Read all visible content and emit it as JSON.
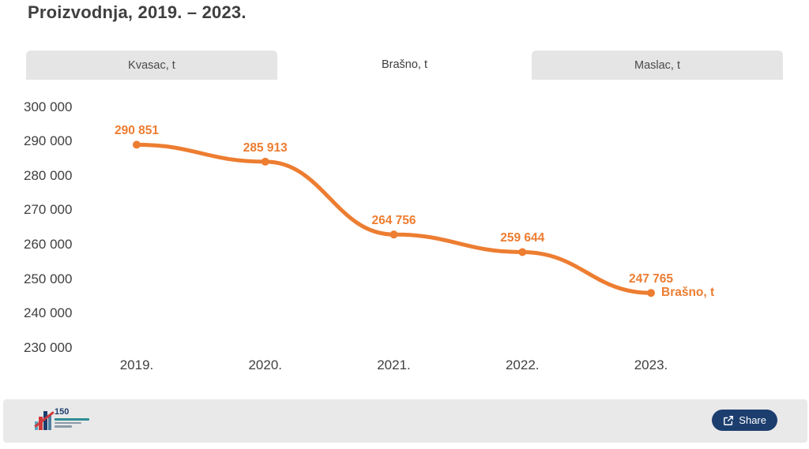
{
  "page": {
    "title": "Proizvodnja, 2019. – 2023."
  },
  "tabs": [
    {
      "label": "Kvasac, t",
      "active": false
    },
    {
      "label": "Brašno, t",
      "active": true
    },
    {
      "label": "Maslac, t",
      "active": false
    }
  ],
  "chart_data": {
    "type": "line",
    "title": "Proizvodnja, 2019. – 2023.",
    "categories": [
      "2019.",
      "2020.",
      "2021.",
      "2022.",
      "2023."
    ],
    "series": [
      {
        "name": "Brašno, t",
        "values": [
          290851,
          285913,
          264756,
          259644,
          247765
        ]
      }
    ],
    "data_labels": [
      "290 851",
      "285 913",
      "264 756",
      "259 644",
      "247 765"
    ],
    "series_end_label": "Brašno, t",
    "y_ticks": [
      300000,
      290000,
      280000,
      270000,
      260000,
      250000,
      240000,
      230000
    ],
    "y_tick_labels": [
      "300 000",
      "290 000",
      "280 000",
      "270 000",
      "260 000",
      "250 000",
      "240 000",
      "230 000"
    ],
    "ylim": [
      230000,
      300000
    ],
    "xlabel": "",
    "ylabel": "",
    "grid": false,
    "legend_position": "end-of-line",
    "line_color": "#ed7d31",
    "label_color": "#ed7d31",
    "axis_text_color": "#404040"
  },
  "footer": {
    "logo": {
      "text": "150",
      "name": "statistics-150th-anniversary-logo"
    },
    "share_button": {
      "label": "Share"
    }
  },
  "colors": {
    "accent_orange": "#ed7d31",
    "tab_inactive_bg": "#e5e5e5",
    "footer_bg": "#e9e9e9",
    "navy": "#1c3e6e",
    "title_text": "#3f3f3f"
  }
}
